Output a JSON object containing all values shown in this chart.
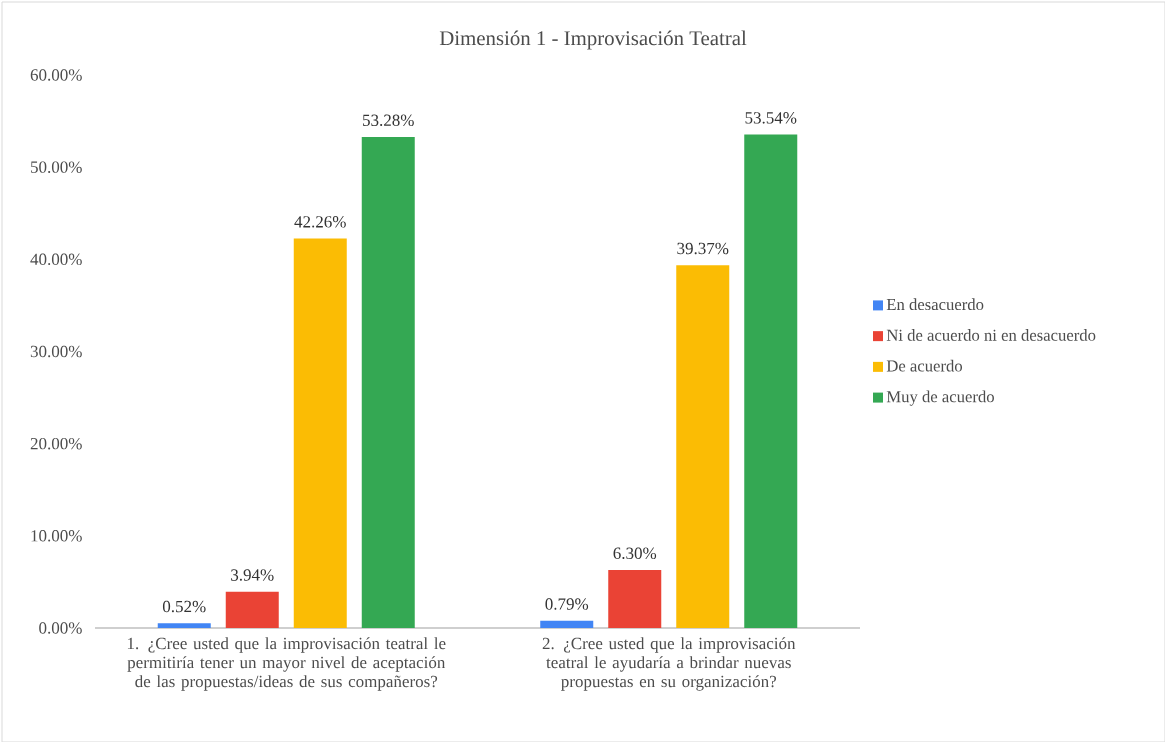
{
  "chart_data": {
    "type": "bar",
    "title": "Dimensión 1 - Improvisación Teatral",
    "categories": [
      "1. ¿Cree usted que la improvisación teatral le permitiría tener un mayor nivel de aceptación de las propuestas/ideas de sus compañeros?",
      "2. ¿Cree usted que la improvisación teatral le ayudaría a brindar nuevas propuestas en su organización?"
    ],
    "series": [
      {
        "name": "En desacuerdo",
        "color": "#4285f4",
        "values": [
          0.52,
          0.79
        ],
        "value_labels": [
          "0.52%",
          "0.79%"
        ]
      },
      {
        "name": "Ni de acuerdo ni en desacuerdo",
        "color": "#ea4335",
        "values": [
          3.94,
          6.3
        ],
        "value_labels": [
          "3.94%",
          "6.30%"
        ]
      },
      {
        "name": "De acuerdo",
        "color": "#fbbc04",
        "values": [
          42.26,
          39.37
        ],
        "value_labels": [
          "42.26%",
          "39.37%"
        ]
      },
      {
        "name": "Muy de acuerdo",
        "color": "#34a853",
        "values": [
          53.28,
          53.54
        ],
        "value_labels": [
          "53.28%",
          "53.54%"
        ]
      }
    ],
    "ylim": [
      0,
      60
    ],
    "yticks": [
      {
        "value": 0,
        "label": "0.00%"
      },
      {
        "value": 10,
        "label": "10.00%"
      },
      {
        "value": 20,
        "label": "20.00%"
      },
      {
        "value": 30,
        "label": "30.00%"
      },
      {
        "value": 40,
        "label": "40.00%"
      },
      {
        "value": 50,
        "label": "50.00%"
      },
      {
        "value": 60,
        "label": "60.00%"
      }
    ],
    "grid": false,
    "legend": "right"
  }
}
